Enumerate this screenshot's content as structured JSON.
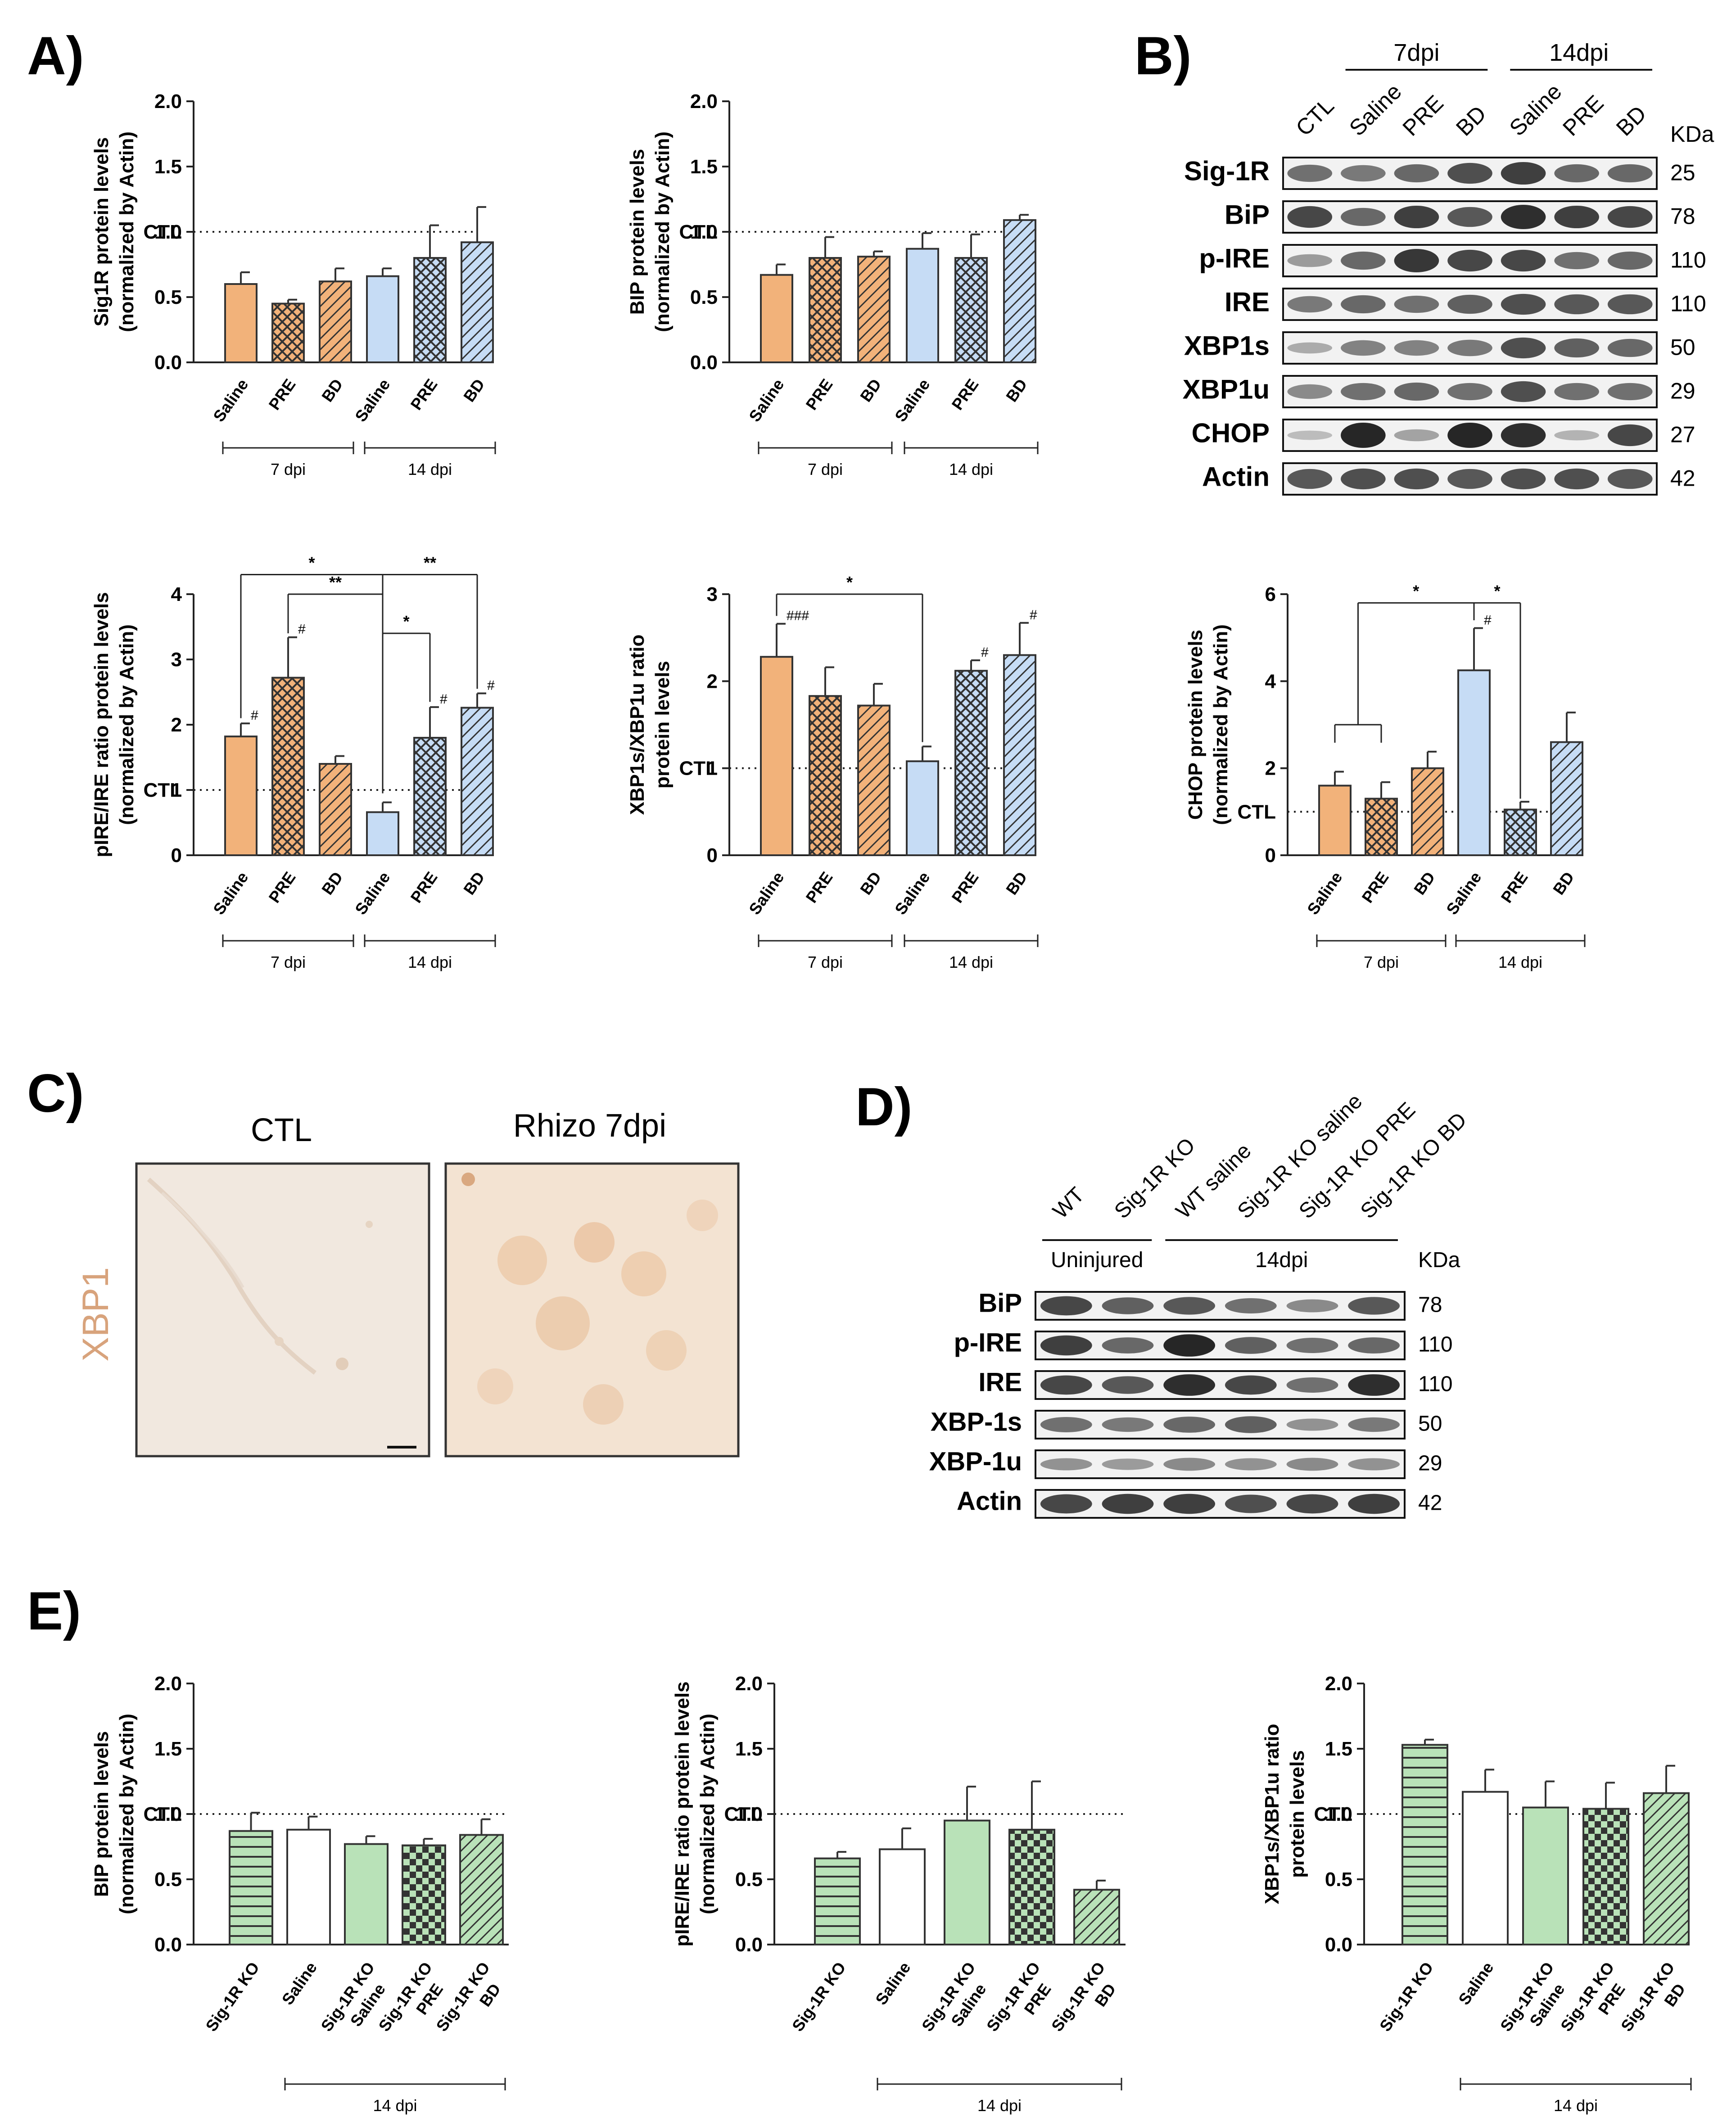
{
  "panels": {
    "A": "A)",
    "B": "B)",
    "C": "C)",
    "D": "D)",
    "E": "E)"
  },
  "colors": {
    "orange": "#f2b27a",
    "blue": "#c6dcf5",
    "green": "#b9e2b8",
    "white": "#ffffff"
  },
  "ctl_label": "CTL",
  "chart_data": [
    {
      "id": "A1",
      "type": "bar",
      "ylabel_lines": [
        "Sig1R protein levels",
        "(normalized by Actin)"
      ],
      "categories": [
        "Saline",
        "PRE",
        "BD",
        "Saline",
        "PRE",
        "BD"
      ],
      "values": [
        0.6,
        0.45,
        0.62,
        0.66,
        0.8,
        0.92
      ],
      "errors": [
        0.09,
        0.03,
        0.1,
        0.06,
        0.25,
        0.27
      ],
      "ylim": [
        0,
        2
      ],
      "yticks": [
        "0.0",
        "0.5",
        "1.0",
        "1.5",
        "2.0"
      ],
      "ytick_values": [
        0,
        0.5,
        1,
        1.5,
        2
      ],
      "ctl": 1.0,
      "groups": [
        {
          "label": "7 dpi",
          "from": 0,
          "to": 2
        },
        {
          "label": "14 dpi",
          "from": 3,
          "to": 5
        }
      ],
      "fills": [
        "orange-solid",
        "orange-cross",
        "orange-diag",
        "blue-solid",
        "blue-cross",
        "blue-diag"
      ],
      "annotations": []
    },
    {
      "id": "A2",
      "type": "bar",
      "ylabel_lines": [
        "BIP protein levels",
        "(normalized by Actin)"
      ],
      "categories": [
        "Saline",
        "PRE",
        "BD",
        "Saline",
        "PRE",
        "BD"
      ],
      "values": [
        0.67,
        0.8,
        0.81,
        0.87,
        0.8,
        1.09
      ],
      "errors": [
        0.08,
        0.16,
        0.04,
        0.12,
        0.18,
        0.04
      ],
      "ylim": [
        0,
        2
      ],
      "yticks": [
        "0.0",
        "0.5",
        "1.0",
        "1.5",
        "2.0"
      ],
      "ytick_values": [
        0,
        0.5,
        1,
        1.5,
        2
      ],
      "ctl": 1.0,
      "groups": [
        {
          "label": "7 dpi",
          "from": 0,
          "to": 2
        },
        {
          "label": "14 dpi",
          "from": 3,
          "to": 5
        }
      ],
      "fills": [
        "orange-solid",
        "orange-cross",
        "orange-diag",
        "blue-solid",
        "blue-cross",
        "blue-diag"
      ],
      "annotations": []
    },
    {
      "id": "A3",
      "type": "bar",
      "ylabel_lines": [
        "pIRE/IRE ratio protein levels",
        "(normalized by Actin)"
      ],
      "categories": [
        "Saline",
        "PRE",
        "BD",
        "Saline",
        "PRE",
        "BD"
      ],
      "values": [
        1.82,
        2.72,
        1.4,
        0.66,
        1.8,
        2.26
      ],
      "errors": [
        0.2,
        0.62,
        0.12,
        0.15,
        0.47,
        0.22
      ],
      "ylim": [
        0,
        4
      ],
      "yticks": [
        "0",
        "1",
        "2",
        "3",
        "4"
      ],
      "ytick_values": [
        0,
        1,
        2,
        3,
        4
      ],
      "ctl": 1.0,
      "groups": [
        {
          "label": "7 dpi",
          "from": 0,
          "to": 2
        },
        {
          "label": "14 dpi",
          "from": 3,
          "to": 5
        }
      ],
      "fills": [
        "orange-solid",
        "orange-cross",
        "orange-diag",
        "blue-solid",
        "blue-cross",
        "blue-diag"
      ],
      "marks": [
        "#",
        "#",
        "",
        "",
        "#",
        "#"
      ],
      "brackets": [
        {
          "from": 0,
          "to": 3,
          "level": 4.3,
          "drop_from": 2.1,
          "drop_to": 0.95,
          "label": "*"
        },
        {
          "from": 1,
          "to": 3,
          "level": 4.0,
          "drop_from": 3.4,
          "drop_to": 0.95,
          "label": "**"
        },
        {
          "from": 3,
          "to": 4,
          "level": 3.4,
          "drop_from": 0.95,
          "drop_to": 2.35,
          "label": "*"
        },
        {
          "from": 3,
          "to": 5,
          "level": 4.3,
          "drop_from": 0.95,
          "drop_to": 2.55,
          "label": "**"
        }
      ]
    },
    {
      "id": "A4",
      "type": "bar",
      "ylabel_lines": [
        "XBP1s/XBP1u ratio",
        "protein levels"
      ],
      "categories": [
        "Saline",
        "PRE",
        "BD",
        "Saline",
        "PRE",
        "BD"
      ],
      "values": [
        2.28,
        1.83,
        1.72,
        1.08,
        2.12,
        2.3
      ],
      "errors": [
        0.38,
        0.33,
        0.25,
        0.17,
        0.12,
        0.37
      ],
      "ylim": [
        0,
        3
      ],
      "yticks": [
        "0",
        "1",
        "2",
        "3"
      ],
      "ytick_values": [
        0,
        1,
        2,
        3
      ],
      "ctl": 1.0,
      "groups": [
        {
          "label": "7 dpi",
          "from": 0,
          "to": 2
        },
        {
          "label": "14 dpi",
          "from": 3,
          "to": 5
        }
      ],
      "fills": [
        "orange-solid",
        "orange-cross",
        "orange-diag",
        "blue-solid",
        "blue-cross",
        "blue-diag"
      ],
      "marks": [
        "###",
        "",
        "",
        "",
        "#",
        "#"
      ],
      "brackets": [
        {
          "from": 0,
          "to": 3,
          "level": 3.0,
          "drop_from": 2.75,
          "drop_to": 1.3,
          "label": "*"
        }
      ]
    },
    {
      "id": "B2",
      "type": "bar",
      "ylabel_lines": [
        "CHOP protein levels",
        "(normalized by Actin)"
      ],
      "categories": [
        "Saline",
        "PRE",
        "BD",
        "Saline",
        "PRE",
        "BD"
      ],
      "values": [
        1.6,
        1.3,
        2.0,
        4.25,
        1.05,
        2.6
      ],
      "errors": [
        0.32,
        0.38,
        0.38,
        0.97,
        0.18,
        0.68
      ],
      "ylim": [
        0,
        6
      ],
      "yticks": [
        "0",
        "2",
        "4",
        "6"
      ],
      "ytick_values": [
        0,
        2,
        4,
        6
      ],
      "ctl": 1.0,
      "groups": [
        {
          "label": "7 dpi",
          "from": 0,
          "to": 2
        },
        {
          "label": "14 dpi",
          "from": 3,
          "to": 5
        }
      ],
      "fills": [
        "orange-solid",
        "orange-cross",
        "orange-diag",
        "blue-solid",
        "blue-cross",
        "blue-diag"
      ],
      "marks": [
        "",
        "",
        "",
        "#",
        "",
        ""
      ],
      "brackets": [
        {
          "from": 0.5,
          "to": 3,
          "level": 5.8,
          "drop_from": 3.0,
          "drop_to": 5.4,
          "label": "*",
          "fork": [
            0,
            1
          ]
        },
        {
          "from": 3,
          "to": 4,
          "level": 5.8,
          "drop_from": 5.4,
          "drop_to": 1.3,
          "label": "*"
        }
      ]
    },
    {
      "id": "E1",
      "type": "bar",
      "ylabel_lines": [
        "BIP protein levels",
        "(normalized by Actin)"
      ],
      "categories": [
        "Sig-1R KO",
        "Saline",
        "Sig-1R KO\nSaline",
        "Sig-1R KO\nPRE",
        "Sig-1R KO\nBD"
      ],
      "x_labels": [
        "Sig-1R KO",
        "Saline",
        "Sig-1R KO",
        "Saline",
        "Sig-1R KO",
        "PRE",
        "Sig-1R KO",
        "BD"
      ],
      "values": [
        0.87,
        0.88,
        0.77,
        0.76,
        0.84
      ],
      "errors": [
        0.14,
        0.1,
        0.06,
        0.05,
        0.12
      ],
      "ylim": [
        0,
        2
      ],
      "yticks": [
        "0.0",
        "0.5",
        "1.0",
        "1.5",
        "2.0"
      ],
      "ytick_values": [
        0,
        0.5,
        1,
        1.5,
        2
      ],
      "ctl": 1.0,
      "groups": [
        {
          "label": "14 dpi",
          "from": 1,
          "to": 4
        }
      ],
      "fills": [
        "green-hline",
        "white-solid",
        "green-solid",
        "green-check",
        "green-diag"
      ],
      "annotations": []
    },
    {
      "id": "E2",
      "type": "bar",
      "ylabel_lines": [
        "pIRE/IRE ratio protein levels",
        "(normalized by Actin)"
      ],
      "categories": [
        "Sig-1R KO",
        "Saline",
        "Sig-1R KO\nSaline",
        "Sig-1R KO\nPRE",
        "Sig-1R KO\nBD"
      ],
      "x_labels": [
        "Sig-1R KO",
        "Saline",
        "Sig-1R KO",
        "Saline",
        "Sig-1R KO",
        "PRE",
        "Sig-1R KO",
        "BD"
      ],
      "values": [
        0.66,
        0.73,
        0.95,
        0.88,
        0.42
      ],
      "errors": [
        0.05,
        0.16,
        0.26,
        0.37,
        0.07
      ],
      "ylim": [
        0,
        2
      ],
      "yticks": [
        "0.0",
        "0.5",
        "1.0",
        "1.5",
        "2.0"
      ],
      "ytick_values": [
        0,
        0.5,
        1,
        1.5,
        2
      ],
      "ctl": 1.0,
      "groups": [
        {
          "label": "14 dpi",
          "from": 1,
          "to": 4
        }
      ],
      "fills": [
        "green-hline",
        "white-solid",
        "green-solid",
        "green-check",
        "green-diag"
      ],
      "annotations": []
    },
    {
      "id": "E3",
      "type": "bar",
      "ylabel_lines": [
        "XBP1s/XBP1u ratio",
        "protein levels"
      ],
      "categories": [
        "Sig-1R KO",
        "Saline",
        "Sig-1R KO\nSaline",
        "Sig-1R KO\nPRE",
        "Sig-1R KO\nBD"
      ],
      "x_labels": [
        "Sig-1R KO",
        "Saline",
        "Sig-1R KO",
        "Saline",
        "Sig-1R KO",
        "PRE",
        "Sig-1R KO",
        "BD"
      ],
      "values": [
        1.53,
        1.17,
        1.05,
        1.04,
        1.16
      ],
      "errors": [
        0.04,
        0.17,
        0.2,
        0.2,
        0.21
      ],
      "ylim": [
        0,
        2
      ],
      "yticks": [
        "0.0",
        "0.5",
        "1.0",
        "1.5",
        "2.0"
      ],
      "ytick_values": [
        0,
        0.5,
        1,
        1.5,
        2
      ],
      "ctl": 1.0,
      "groups": [
        {
          "label": "14 dpi",
          "from": 1,
          "to": 4
        }
      ],
      "fills": [
        "green-hline",
        "white-solid",
        "green-solid",
        "green-check",
        "green-diag"
      ],
      "annotations": []
    }
  ],
  "blotB": {
    "lanes": [
      "CTL",
      "Saline",
      "PRE",
      "BD",
      "Saline",
      "PRE",
      "BD"
    ],
    "group_7": "7dpi",
    "group_14": "14dpi",
    "kda_header": "KDa",
    "rows": [
      {
        "label": "Sig-1R",
        "kda": "25",
        "intensity": [
          0.55,
          0.5,
          0.6,
          0.75,
          0.85,
          0.6,
          0.6
        ]
      },
      {
        "label": "BiP",
        "kda": "78",
        "intensity": [
          0.8,
          0.6,
          0.85,
          0.7,
          0.95,
          0.85,
          0.8
        ]
      },
      {
        "label": "p-IRE",
        "kda": "110",
        "intensity": [
          0.3,
          0.6,
          0.9,
          0.8,
          0.8,
          0.55,
          0.6
        ]
      },
      {
        "label": "IRE",
        "kda": "110",
        "intensity": [
          0.5,
          0.6,
          0.55,
          0.65,
          0.75,
          0.7,
          0.7
        ]
      },
      {
        "label": "XBP1s",
        "kda": "50",
        "intensity": [
          0.2,
          0.45,
          0.45,
          0.5,
          0.75,
          0.65,
          0.6
        ]
      },
      {
        "label": "XBP1u",
        "kda": "29",
        "intensity": [
          0.4,
          0.55,
          0.6,
          0.55,
          0.75,
          0.55,
          0.55
        ]
      },
      {
        "label": "CHOP",
        "kda": "27",
        "intensity": [
          0.1,
          1.0,
          0.25,
          1.0,
          0.95,
          0.15,
          0.8
        ]
      },
      {
        "label": "Actin",
        "kda": "42",
        "intensity": [
          0.7,
          0.75,
          0.75,
          0.7,
          0.75,
          0.75,
          0.7
        ]
      }
    ]
  },
  "blotD": {
    "lanes": [
      "WT",
      "Sig-1R KO",
      "WT saline",
      "Sig-1R KO saline",
      "Sig-1R KO PRE",
      "Sig-1R KO BD"
    ],
    "group_uninjured": "Uninjured",
    "group_14": "14dpi",
    "kda_header": "KDa",
    "rows": [
      {
        "label": "BiP",
        "kda": "78",
        "intensity": [
          0.8,
          0.65,
          0.7,
          0.55,
          0.4,
          0.7
        ]
      },
      {
        "label": "p-IRE",
        "kda": "110",
        "intensity": [
          0.85,
          0.6,
          1.0,
          0.65,
          0.55,
          0.6
        ]
      },
      {
        "label": "IRE",
        "kda": "110",
        "intensity": [
          0.8,
          0.7,
          0.95,
          0.8,
          0.55,
          0.95
        ]
      },
      {
        "label": "XBP-1s",
        "kda": "50",
        "intensity": [
          0.55,
          0.5,
          0.6,
          0.65,
          0.35,
          0.5
        ]
      },
      {
        "label": "XBP-1u",
        "kda": "29",
        "intensity": [
          0.35,
          0.3,
          0.4,
          0.35,
          0.4,
          0.35
        ]
      },
      {
        "label": "Actin",
        "kda": "42",
        "intensity": [
          0.8,
          0.85,
          0.85,
          0.75,
          0.8,
          0.85
        ]
      }
    ]
  },
  "panelC": {
    "title_left": "CTL",
    "title_right": "Rhizo 7dpi",
    "side_label": "XBP1"
  }
}
